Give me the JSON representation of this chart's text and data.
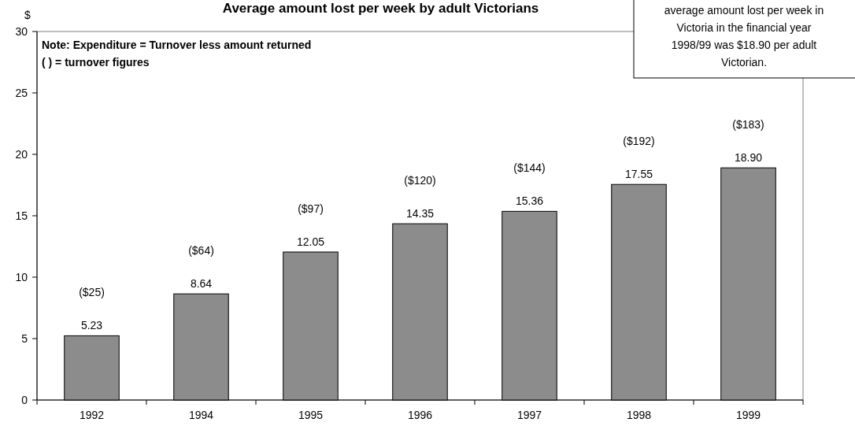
{
  "chart_data": {
    "type": "bar",
    "title": "Average amount lost per week by adult Victorians",
    "ylabel": "$",
    "categories": [
      "1992",
      "1994",
      "1995",
      "1996",
      "1997",
      "1998",
      "1999"
    ],
    "values": [
      5.23,
      8.64,
      12.05,
      14.35,
      15.36,
      17.55,
      18.9
    ],
    "color": "#8c8c8c",
    "value_labels": [
      "5.23",
      "8.64",
      "12.05",
      "14.35",
      "15.36",
      "17.55",
      "18.90"
    ],
    "ylim": [
      0,
      30
    ],
    "yticks": [
      0,
      5,
      10,
      15,
      20,
      25,
      30
    ],
    "grid": false,
    "annotations": [
      "Note:  Expenditure = Turnover less amount returned",
      "( ) = turnover figures",
      "average amount lost per week in Victoria in the financial year 1998/99 was $18.90 per adult Victorian.",
      "($25)",
      "($64)",
      "($97)",
      "($120)",
      "($144)",
      "($192)",
      "($183)"
    ]
  }
}
